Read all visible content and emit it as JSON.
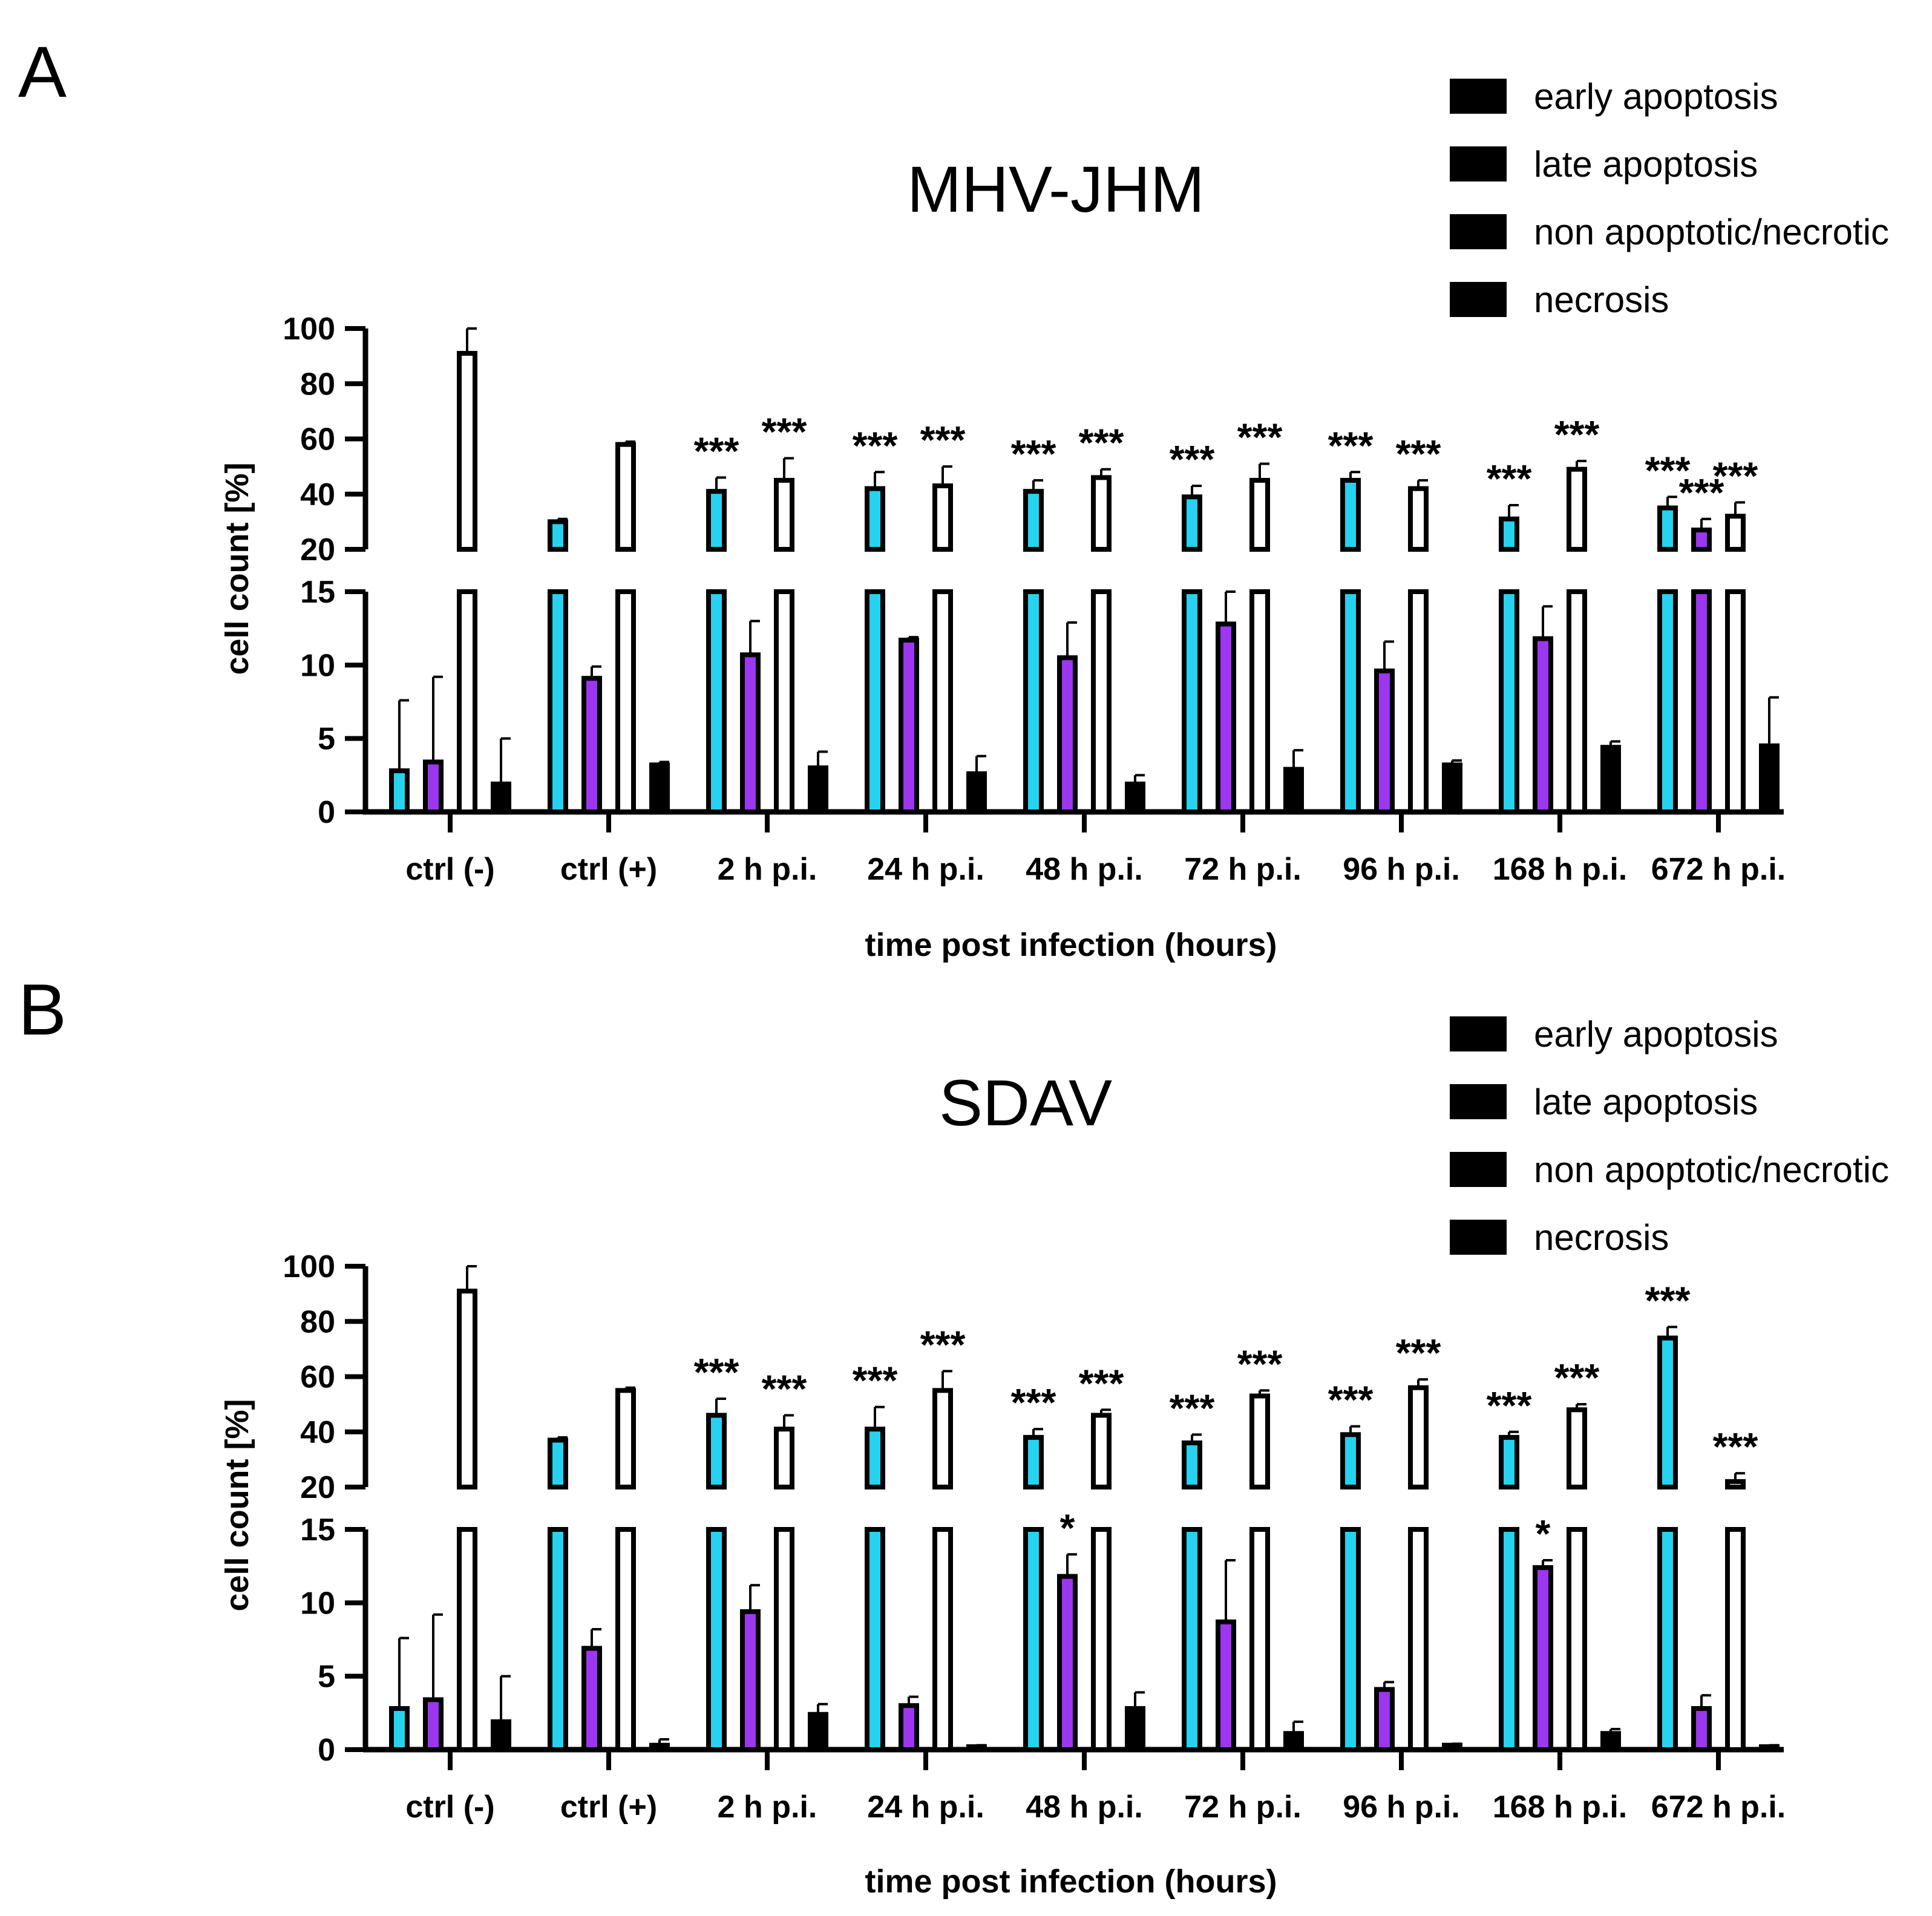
{
  "figure": {
    "colors": {
      "early_apoptosis": "#25D3F0",
      "late_apoptosis": "#9D36F0",
      "non_apoptotic_necrotic": "#FFFFFF",
      "necrosis": "#000000"
    }
  },
  "chart_data": [
    {
      "panel": "A",
      "type": "bar",
      "title": "MHV-JHM",
      "xlabel": "time post infection (hours)",
      "ylabel": "cell count [%]",
      "ylim": [
        0,
        100
      ],
      "axis_break": [
        15,
        20
      ],
      "yticks_lower": [
        "0",
        "5",
        "10",
        "15"
      ],
      "yticks_upper": [
        "20",
        "40",
        "60",
        "80",
        "100"
      ],
      "legend_position": "top-right",
      "categories": [
        "ctrl (-)",
        "ctrl (+)",
        "2 h p.i.",
        "24 h p.i.",
        "48 h p.i.",
        "72 h p.i.",
        "96 h p.i.",
        "168 h p.i.",
        "672 h p.i."
      ],
      "series": [
        {
          "name": "early apoptosis",
          "values": [
            2.8,
            30,
            41,
            42,
            41,
            39,
            45,
            31,
            35
          ],
          "errors": [
            4.8,
            1,
            5,
            6,
            4,
            4,
            3,
            5,
            4
          ],
          "significance": [
            "",
            "",
            "***",
            "***",
            "***",
            "***",
            "***",
            "***",
            "***"
          ]
        },
        {
          "name": "late apoptosis",
          "values": [
            3.4,
            9.1,
            10.7,
            11.7,
            10.5,
            12.8,
            9.6,
            11.8,
            27
          ],
          "errors": [
            5.8,
            0.8,
            2.3,
            0.2,
            2.4,
            2.7,
            2.0,
            2.2,
            4
          ],
          "significance": [
            "",
            "",
            "",
            "",
            "",
            "",
            "",
            "",
            "***"
          ]
        },
        {
          "name": "non apoptotic/necrotic",
          "values": [
            91,
            58,
            45,
            43,
            46,
            45,
            42,
            49,
            32
          ],
          "errors": [
            9,
            1,
            8,
            7,
            3,
            6,
            3,
            3,
            5
          ],
          "significance": [
            "",
            "",
            "***",
            "***",
            "***",
            "***",
            "***",
            "***",
            "***"
          ]
        },
        {
          "name": "necrosis",
          "values": [
            1.9,
            3.2,
            3.0,
            2.6,
            1.9,
            2.9,
            3.2,
            4.4,
            4.5
          ],
          "errors": [
            3.1,
            0.2,
            1.1,
            1.2,
            0.6,
            1.3,
            0.3,
            0.4,
            3.3
          ],
          "significance": [
            "",
            "",
            "",
            "",
            "",
            "",
            "",
            "",
            ""
          ]
        }
      ]
    },
    {
      "panel": "B",
      "type": "bar",
      "title": "SDAV",
      "xlabel": "time post infection (hours)",
      "ylabel": "cell count [%]",
      "ylim": [
        0,
        100
      ],
      "axis_break": [
        15,
        20
      ],
      "yticks_lower": [
        "0",
        "5",
        "10",
        "15"
      ],
      "yticks_upper": [
        "20",
        "40",
        "60",
        "80",
        "100"
      ],
      "legend_position": "top-right",
      "categories": [
        "ctrl (-)",
        "ctrl (+)",
        "2 h p.i.",
        "24 h p.i.",
        "48 h p.i.",
        "72 h p.i.",
        "96 h p.i.",
        "168 h p.i.",
        "672 h p.i."
      ],
      "series": [
        {
          "name": "early apoptosis",
          "values": [
            2.8,
            37,
            46,
            41,
            38,
            36,
            39,
            38,
            74
          ],
          "errors": [
            4.8,
            1,
            6,
            8,
            3,
            3,
            3,
            2,
            4
          ],
          "significance": [
            "",
            "",
            "***",
            "***",
            "***",
            "***",
            "***",
            "***",
            "***"
          ]
        },
        {
          "name": "late apoptosis",
          "values": [
            3.4,
            6.9,
            9.4,
            3.0,
            11.8,
            8.7,
            4.1,
            12.4,
            2.8
          ],
          "errors": [
            5.8,
            1.3,
            1.8,
            0.6,
            1.5,
            4.2,
            0.5,
            0.5,
            0.9
          ],
          "significance": [
            "",
            "",
            "",
            "",
            "*",
            "",
            "",
            "*",
            ""
          ]
        },
        {
          "name": "non apoptotic/necrotic",
          "values": [
            91,
            55,
            41,
            55,
            46,
            53,
            56,
            48,
            22
          ],
          "errors": [
            9,
            1,
            5,
            7,
            2,
            2,
            3,
            2,
            3
          ],
          "significance": [
            "",
            "",
            "***",
            "***",
            "***",
            "***",
            "***",
            "***",
            "***"
          ]
        },
        {
          "name": "necrosis",
          "values": [
            1.9,
            0.3,
            2.4,
            0.2,
            2.8,
            1.1,
            0.3,
            1.1,
            0.2
          ],
          "errors": [
            3.1,
            0.4,
            0.7,
            0.1,
            1.1,
            0.8,
            0.1,
            0.3,
            0.1
          ],
          "significance": [
            "",
            "",
            "",
            "",
            "",
            "",
            "",
            "",
            ""
          ]
        }
      ]
    }
  ]
}
